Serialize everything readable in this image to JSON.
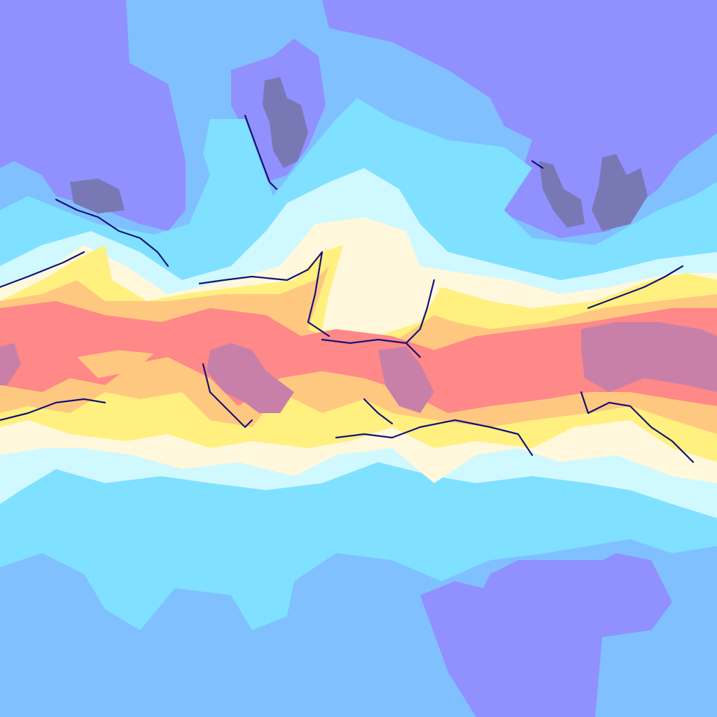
{
  "map": {
    "projection": "equirectangular",
    "colors": {
      "very_cold": "#7878b4",
      "cold": "#9090ff",
      "cool": "#80c0ff",
      "mild_cool": "#80e0ff",
      "mild": "#d0f8ff",
      "warm_mild": "#fff8dc",
      "warm": "#fff080",
      "hot": "#ffc880",
      "very_hot": "#ff8888",
      "extreme": "#c880a8",
      "coastline": "#10107a"
    }
  }
}
